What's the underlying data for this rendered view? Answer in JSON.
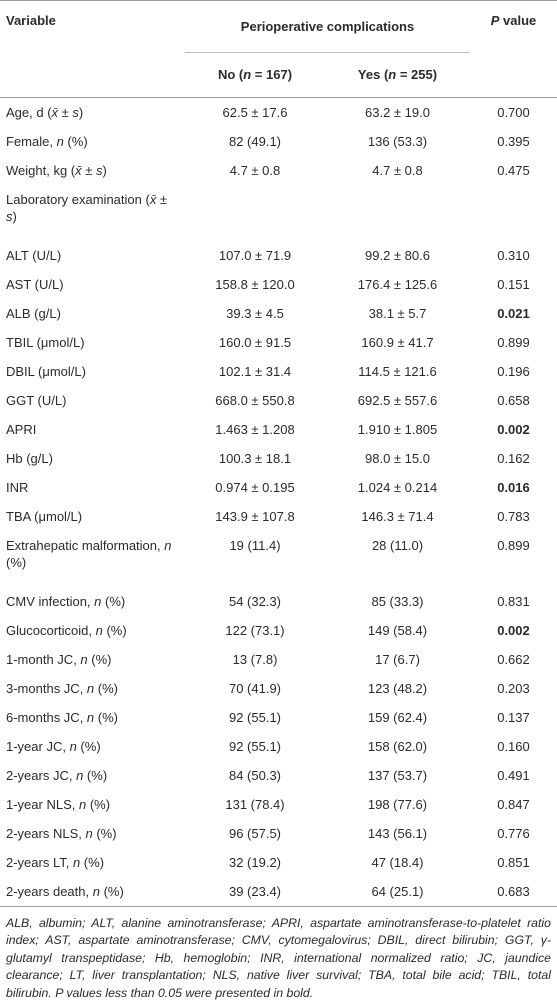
{
  "header": {
    "variable": [
      "Variable"
    ],
    "group": [
      "Perioperative complications"
    ],
    "no": [
      "No (",
      {
        "text": "n",
        "style": "italic"
      },
      " = 167)"
    ],
    "yes": [
      "Yes (",
      {
        "text": "n",
        "style": "italic"
      },
      " = 255)"
    ],
    "p": [
      {
        "text": "P",
        "style": "italic"
      },
      " value"
    ]
  },
  "table": {
    "rows": [
      {
        "variable": [
          "Age, d (",
          {
            "text": "x̄",
            "style": "italic"
          },
          " ± ",
          {
            "text": "s",
            "style": "italic"
          },
          ")"
        ],
        "no": "62.5 ± 17.6",
        "yes": "63.2 ± 19.0",
        "p": "0.700"
      },
      {
        "variable": [
          "Female, ",
          {
            "text": "n",
            "style": "italic"
          },
          " (%)"
        ],
        "no": "82 (49.1)",
        "yes": "136 (53.3)",
        "p": "0.395"
      },
      {
        "variable": [
          "Weight, kg (",
          {
            "text": "x̄",
            "style": "italic"
          },
          " ± ",
          {
            "text": "s",
            "style": "italic"
          },
          ")"
        ],
        "no": "4.7 ± 0.8",
        "yes": "4.7 ± 0.8",
        "p": "0.475"
      },
      {
        "variable": [
          "Laboratory examination (",
          {
            "text": "x̄",
            "style": "italic"
          },
          " ± ",
          {
            "text": "s",
            "style": "italic"
          },
          ")"
        ]
      },
      {
        "variable": [
          "ALT (U/L)"
        ],
        "no": "107.0 ± 71.9",
        "yes": "99.2 ± 80.6",
        "p": "0.310"
      },
      {
        "variable": [
          "AST (U/L)"
        ],
        "no": "158.8 ± 120.0",
        "yes": "176.4 ± 125.6",
        "p": "0.151"
      },
      {
        "variable": [
          "ALB (g/L)"
        ],
        "no": "39.3 ± 4.5",
        "yes": "38.1 ± 5.7",
        "p": "0.021",
        "p_style": "bold"
      },
      {
        "variable": [
          "TBIL (μmol/L)"
        ],
        "no": "160.0 ± 91.5",
        "yes": "160.9 ± 41.7",
        "p": "0.899"
      },
      {
        "variable": [
          "DBIL (μmol/L)"
        ],
        "no": "102.1 ± 31.4",
        "yes": "114.5 ± 121.6",
        "p": "0.196"
      },
      {
        "variable": [
          "GGT (U/L)"
        ],
        "no": "668.0 ± 550.8",
        "yes": "692.5 ± 557.6",
        "p": "0.658"
      },
      {
        "variable": [
          "APRI"
        ],
        "no": "1.463 ± 1.208",
        "yes": "1.910 ± 1.805",
        "p": "0.002",
        "p_style": "bold"
      },
      {
        "variable": [
          "Hb (g/L)"
        ],
        "no": "100.3 ± 18.1",
        "yes": "98.0 ± 15.0",
        "p": "0.162"
      },
      {
        "variable": [
          "INR"
        ],
        "no": "0.974 ± 0.195",
        "yes": "1.024 ± 0.214",
        "p": "0.016",
        "p_style": "bold"
      },
      {
        "variable": [
          "TBA (μmol/L)"
        ],
        "no": "143.9 ± 107.8",
        "yes": "146.3 ± 71.4",
        "p": "0.783"
      },
      {
        "variable": [
          "Extrahepatic malformation, ",
          {
            "text": "n",
            "style": "italic"
          },
          " (%)"
        ],
        "no": "19 (11.4)",
        "yes": "28 (11.0)",
        "p": "0.899"
      },
      {
        "variable": [
          "CMV infection, ",
          {
            "text": "n",
            "style": "italic"
          },
          " (%)"
        ],
        "no": "54 (32.3)",
        "yes": "85 (33.3)",
        "p": "0.831"
      },
      {
        "variable": [
          "Glucocorticoid, ",
          {
            "text": "n",
            "style": "italic"
          },
          " (%)"
        ],
        "no": "122 (73.1)",
        "yes": "149 (58.4)",
        "p": "0.002",
        "p_style": "bold"
      },
      {
        "variable": [
          "1-month JC, ",
          {
            "text": "n",
            "style": "italic"
          },
          " (%)"
        ],
        "no": "13 (7.8)",
        "yes": "17 (6.7)",
        "p": "0.662"
      },
      {
        "variable": [
          "3-months JC, ",
          {
            "text": "n",
            "style": "italic"
          },
          " (%)"
        ],
        "no": "70 (41.9)",
        "yes": "123 (48.2)",
        "p": "0.203"
      },
      {
        "variable": [
          "6-months JC, ",
          {
            "text": "n",
            "style": "italic"
          },
          " (%)"
        ],
        "no": "92 (55.1)",
        "yes": "159 (62.4)",
        "p": "0.137"
      },
      {
        "variable": [
          "1-year JC, ",
          {
            "text": "n",
            "style": "italic"
          },
          " (%)"
        ],
        "no": "92 (55.1)",
        "yes": "158 (62.0)",
        "p": "0.160"
      },
      {
        "variable": [
          "2-years JC, ",
          {
            "text": "n",
            "style": "italic"
          },
          " (%)"
        ],
        "no": "84 (50.3)",
        "yes": "137 (53.7)",
        "p": "0.491"
      },
      {
        "variable": [
          "1-year NLS, ",
          {
            "text": "n",
            "style": "italic"
          },
          " (%)"
        ],
        "no": "131 (78.4)",
        "yes": "198 (77.6)",
        "p": "0.847"
      },
      {
        "variable": [
          "2-years NLS, ",
          {
            "text": "n",
            "style": "italic"
          },
          " (%)"
        ],
        "no": "96 (57.5)",
        "yes": "143 (56.1)",
        "p": "0.776"
      },
      {
        "variable": [
          "2-years LT, ",
          {
            "text": "n",
            "style": "italic"
          },
          " (%)"
        ],
        "no": "32 (19.2)",
        "yes": "47 (18.4)",
        "p": "0.851"
      },
      {
        "variable": [
          "2-years death, ",
          {
            "text": "n",
            "style": "italic"
          },
          " (%)"
        ],
        "no": "39 (23.4)",
        "yes": "64 (25.1)",
        "p": "0.683"
      }
    ]
  },
  "footnote": "ALB, albumin; ALT, alanine aminotransferase; APRI, aspartate aminotransferase-to-platelet ratio index; AST, aspartate aminotransferase; CMV, cytomegalovirus; DBIL, direct bilirubin; GGT, γ-glutamyl transpeptidase; Hb, hemoglobin; INR, international normalized ratio; JC, jaundice clearance; LT, liver transplantation; NLS, native liver survival; TBA, total bile acid; TBIL, total bilirubin. P values less than 0.05 were presented in bold."
}
